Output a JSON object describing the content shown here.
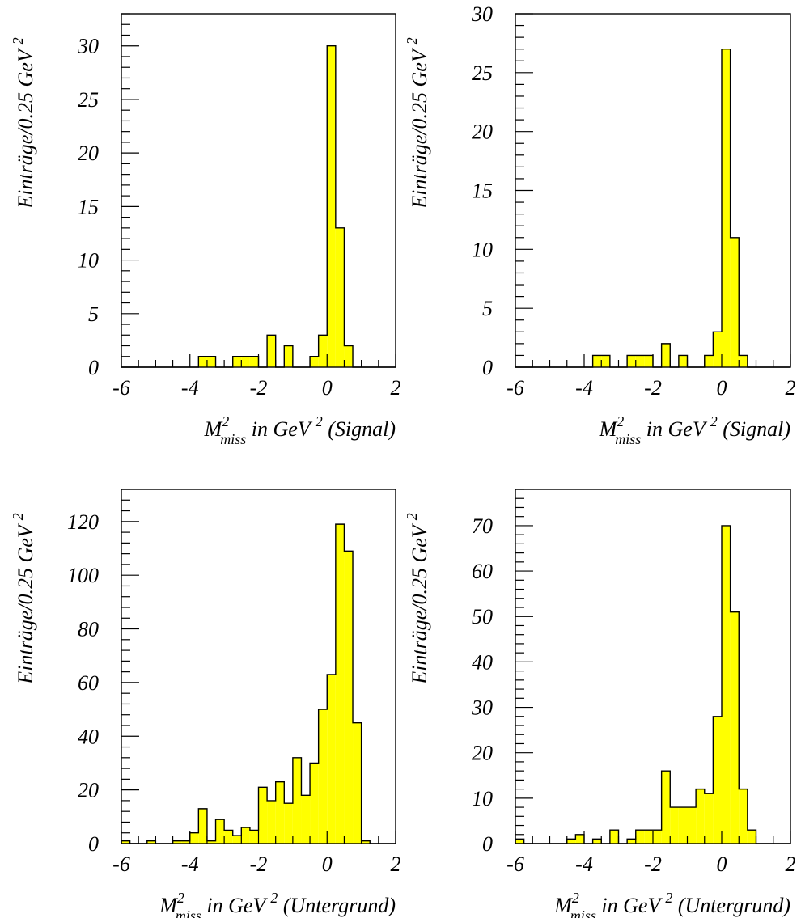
{
  "colors": {
    "bar_fill": "#ffff00",
    "stroke": "#000000",
    "background": "#ffffff"
  },
  "chart_data": [
    {
      "type": "bar",
      "panel": "top-left",
      "bin_width": 0.25,
      "x_bin_start": -6.0,
      "xlim": [
        -6,
        2
      ],
      "ylim": [
        0,
        33
      ],
      "xticks": [
        "-6",
        "-4",
        "-2",
        "0",
        "2"
      ],
      "yticks": [
        "0",
        "5",
        "10",
        "15",
        "20",
        "25",
        "30"
      ],
      "xlabel": {
        "m": "M",
        "sup": "2",
        "sub": "miss",
        "text": "in GeV",
        "unit_sup": "2",
        "tail": "(Signal)"
      },
      "ylabel": {
        "text": "Einträge/0.25 GeV",
        "sup": "2"
      },
      "values": [
        0,
        0,
        0,
        0,
        0,
        0,
        0,
        0,
        0,
        1,
        1,
        0,
        0,
        1,
        1,
        1,
        0,
        3,
        0,
        2,
        0,
        0,
        1,
        3,
        30,
        13,
        2,
        0,
        0,
        0,
        0,
        0
      ]
    },
    {
      "type": "bar",
      "panel": "top-right",
      "bin_width": 0.25,
      "x_bin_start": -6.0,
      "xlim": [
        -6,
        2
      ],
      "ylim": [
        0,
        30
      ],
      "xticks": [
        "-6",
        "-4",
        "-2",
        "0",
        "2"
      ],
      "yticks": [
        "0",
        "5",
        "10",
        "15",
        "20",
        "25",
        "30"
      ],
      "xlabel": {
        "m": "M",
        "sup": "2",
        "sub": "miss",
        "text": "in GeV",
        "unit_sup": "2",
        "tail": "(Signal)"
      },
      "ylabel": {
        "text": "Einträge/0.25 GeV",
        "sup": "2"
      },
      "values": [
        0,
        0,
        0,
        0,
        0,
        0,
        0,
        0,
        0,
        1,
        1,
        0,
        0,
        1,
        1,
        1,
        0,
        2,
        0,
        1,
        0,
        0,
        1,
        3,
        27,
        11,
        1,
        0,
        0,
        0,
        0,
        0
      ]
    },
    {
      "type": "bar",
      "panel": "bottom-left",
      "bin_width": 0.25,
      "x_bin_start": -6.0,
      "xlim": [
        -6,
        2
      ],
      "ylim": [
        0,
        132
      ],
      "xticks": [
        "-6",
        "-4",
        "-2",
        "0",
        "2"
      ],
      "yticks": [
        "0",
        "20",
        "40",
        "60",
        "80",
        "100",
        "120"
      ],
      "xlabel": {
        "m": "M",
        "sup": "2",
        "sub": "miss",
        "text": "in GeV",
        "unit_sup": "2",
        "tail": "(Untergrund)"
      },
      "ylabel": {
        "text": "Einträge/0.25 GeV",
        "sup": "2"
      },
      "values": [
        1,
        0,
        0,
        1,
        0,
        0,
        1,
        1,
        4,
        13,
        1,
        9,
        5,
        3,
        6,
        5,
        21,
        16,
        23,
        15,
        32,
        18,
        30,
        50,
        63,
        119,
        109,
        45,
        1,
        0,
        0,
        0
      ]
    },
    {
      "type": "bar",
      "panel": "bottom-right",
      "bin_width": 0.25,
      "x_bin_start": -6.0,
      "xlim": [
        -6,
        2
      ],
      "ylim": [
        0,
        78
      ],
      "xticks": [
        "-6",
        "-4",
        "-2",
        "0",
        "2"
      ],
      "yticks": [
        "0",
        "10",
        "20",
        "30",
        "40",
        "50",
        "60",
        "70"
      ],
      "xlabel": {
        "m": "M",
        "sup": "2",
        "sub": "miss",
        "text": "in GeV",
        "unit_sup": "2",
        "tail": "(Untergrund)"
      },
      "ylabel": {
        "text": "Einträge/0.25 GeV",
        "sup": "2"
      },
      "values": [
        1,
        0,
        0,
        0,
        0,
        0,
        1,
        2,
        0,
        1,
        0,
        3,
        0,
        1,
        3,
        3,
        3,
        16,
        8,
        8,
        8,
        12,
        11,
        28,
        70,
        51,
        12,
        3,
        0,
        0,
        0,
        0
      ]
    }
  ]
}
